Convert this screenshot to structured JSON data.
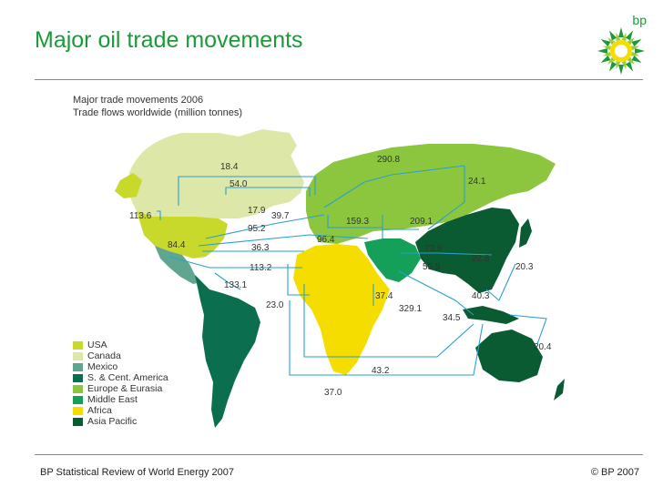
{
  "slide": {
    "title": "Major oil trade movements",
    "footer_left": "BP Statistical Review of World Energy 2007",
    "footer_right": "© BP 2007",
    "logo_text": "bp"
  },
  "map": {
    "heading_line1": "Major trade movements 2006",
    "heading_line2": "Trade flows worldwide (million tonnes)",
    "legend": [
      {
        "label": "USA",
        "color": "#c8d92b"
      },
      {
        "label": "Canada",
        "color": "#dde7a8"
      },
      {
        "label": "Mexico",
        "color": "#5fa58f"
      },
      {
        "label": "S. & Cent. America",
        "color": "#0b6e4f"
      },
      {
        "label": "Europe & Eurasia",
        "color": "#8cc63f"
      },
      {
        "label": "Middle East",
        "color": "#15a05a"
      },
      {
        "label": "Africa",
        "color": "#f6dd00"
      },
      {
        "label": "Asia Pacific",
        "color": "#0a5a32"
      }
    ],
    "flow_color": "#2a9fd0",
    "flows": [
      "18.4",
      "54.0",
      "290.8",
      "24.1",
      "113.6",
      "17.9",
      "39.7",
      "159.3",
      "209.1",
      "95.2",
      "84.4",
      "96.4",
      "73.9",
      "36.3",
      "22.8",
      "20.3",
      "113.2",
      "55.5",
      "133.1",
      "37.4",
      "40.3",
      "23.0",
      "329.1",
      "34.5",
      "20.4",
      "43.2",
      "37.0"
    ]
  }
}
